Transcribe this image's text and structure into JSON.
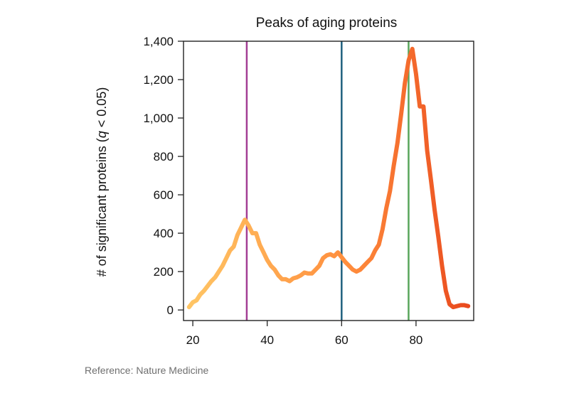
{
  "chart_data": {
    "type": "line",
    "title": "Peaks of aging proteins",
    "xlabel": "",
    "ylabel_parts": [
      "# of significant proteins (",
      "q",
      " < 0.05)"
    ],
    "xlim": [
      17.5,
      95.5
    ],
    "ylim": [
      -55,
      1400
    ],
    "xticks": [
      20,
      40,
      60,
      80
    ],
    "yticks": [
      0,
      200,
      400,
      600,
      800,
      1000,
      1200,
      1400
    ],
    "ytick_labels": [
      "0",
      "200",
      "400",
      "600",
      "800",
      "1,000",
      "1,200",
      "1,400"
    ],
    "series": [
      {
        "name": "significant proteins",
        "x": [
          19,
          20,
          21,
          22,
          23,
          24,
          25,
          26,
          27,
          28,
          29,
          30,
          31,
          32,
          33,
          34,
          35,
          36,
          37,
          38,
          39,
          40,
          41,
          42,
          43,
          44,
          45,
          46,
          47,
          48,
          49,
          50,
          51,
          52,
          53,
          54,
          55,
          56,
          57,
          58,
          59,
          60,
          61,
          62,
          63,
          64,
          65,
          66,
          67,
          68,
          69,
          70,
          71,
          72,
          73,
          74,
          75,
          76,
          77,
          78,
          79,
          80,
          81,
          82,
          83,
          84,
          85,
          86,
          87,
          88,
          89,
          90,
          91,
          92,
          93,
          94
        ],
        "y": [
          15,
          40,
          50,
          80,
          100,
          125,
          150,
          170,
          200,
          230,
          270,
          310,
          330,
          390,
          430,
          470,
          440,
          400,
          400,
          340,
          300,
          260,
          230,
          210,
          180,
          160,
          160,
          150,
          165,
          170,
          180,
          195,
          190,
          190,
          210,
          230,
          270,
          285,
          290,
          280,
          300,
          275,
          250,
          230,
          210,
          200,
          210,
          230,
          250,
          270,
          310,
          340,
          420,
          530,
          620,
          750,
          870,
          1020,
          1180,
          1300,
          1360,
          1230,
          1060,
          1060,
          830,
          680,
          520,
          380,
          230,
          100,
          30,
          15,
          20,
          25,
          25,
          20
        ],
        "color_start": "#ffc766",
        "color_mid": "#ff8c3c",
        "color_end": "#e8461c"
      }
    ],
    "reference_lines": [
      {
        "x": 34.5,
        "color": "#a33d94"
      },
      {
        "x": 60,
        "color": "#21617f"
      },
      {
        "x": 78,
        "color": "#58a55a"
      }
    ]
  },
  "footer": {
    "reference": "Reference: Nature Medicine"
  }
}
